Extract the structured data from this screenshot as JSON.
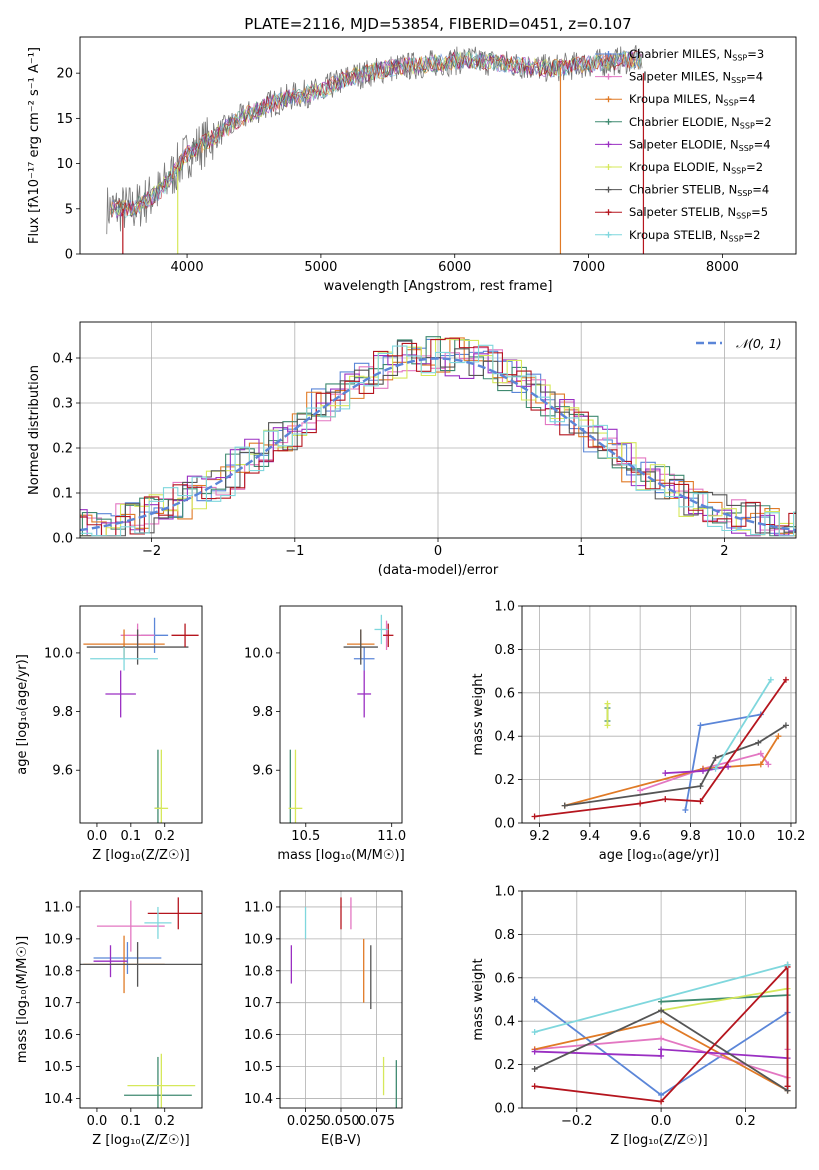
{
  "figure_title": "PLATE=2116, MJD=53854, FIBERID=0451, z=0.107",
  "colors": {
    "Chabrier MILES": "#5b86d8",
    "Salpeter MILES": "#e377c2",
    "Kroupa MILES": "#e07a26",
    "Chabrier ELODIE": "#3f8a70",
    "Salpeter ELODIE": "#9a2fc2",
    "Kroupa ELODIE": "#d6e85a",
    "Chabrier STELIB": "#555555",
    "Salpeter STELIB": "#b5151e",
    "Kroupa STELIB": "#7fd7dd",
    "spectrum": "#777777"
  },
  "chart_data": [
    {
      "id": "spectrum",
      "type": "line",
      "xlabel": "wavelength [Angstrom, rest frame]",
      "ylabel": "Flux [fλ10⁻¹⁷ erg cm⁻² s⁻¹ A⁻¹]",
      "xlim": [
        3200,
        8550
      ],
      "ylim": [
        0,
        24
      ],
      "xticks": [
        4000,
        5000,
        6000,
        7000,
        8000
      ],
      "yticks": [
        0,
        5,
        10,
        15,
        20
      ],
      "grid": false,
      "legend_position": "top-right",
      "legend": [
        "Chabrier MILES, N_SSP=3",
        "Salpeter MILES, N_SSP=4",
        "Kroupa MILES, N_SSP=4",
        "Chabrier ELODIE, N_SSP=2",
        "Salpeter ELODIE, N_SSP=4",
        "Kroupa ELODIE, N_SSP=2",
        "Chabrier STELIB, N_SSP=4",
        "Salpeter STELIB, N_SSP=5",
        "Kroupa STELIB, N_SSP=2"
      ],
      "continuum": {
        "x": [
          3400,
          3600,
          3800,
          4000,
          4200,
          4400,
          4600,
          4800,
          5000,
          5200,
          5500,
          5800,
          6100,
          6400,
          6700,
          7000,
          7300,
          7400
        ],
        "y": [
          5,
          5,
          7,
          11,
          13,
          15,
          16.5,
          17.5,
          18,
          19.5,
          20.5,
          21,
          21.5,
          21,
          20.5,
          21,
          21.5,
          21.5
        ]
      },
      "vertical_drops_x": [
        3520,
        3930,
        6790,
        7410
      ]
    },
    {
      "id": "residuals",
      "type": "step",
      "xlabel": "(data-model)/error",
      "ylabel": "Normed distribution",
      "xlim": [
        -2.5,
        2.5
      ],
      "ylim": [
        0,
        0.48
      ],
      "xticks": [
        -2,
        -1,
        0,
        1,
        2
      ],
      "yticks": [
        0.0,
        0.1,
        0.2,
        0.3,
        0.4
      ],
      "grid": true,
      "legend_position": "top-right",
      "legend": [
        "𝒩(0, 1)"
      ]
    },
    {
      "id": "age-vs-Z",
      "type": "errorbar",
      "xlabel": "Z [log₁₀(Z/Z☉)]",
      "ylabel": "age  [log₁₀(age/yr)]",
      "xlim": [
        -0.05,
        0.31
      ],
      "ylim": [
        9.42,
        10.16
      ],
      "xticks": [
        0.0,
        0.1,
        0.2
      ],
      "yticks": [
        9.6,
        9.8,
        10.0
      ],
      "grid": false,
      "points": [
        {
          "m": "Chabrier MILES",
          "x": 0.17,
          "y": 10.06,
          "xe": 0.04,
          "ye": 0.06
        },
        {
          "m": "Salpeter MILES",
          "x": 0.12,
          "y": 10.06,
          "xe": 0.05,
          "ye": 0.04
        },
        {
          "m": "Kroupa MILES",
          "x": 0.08,
          "y": 10.03,
          "xe": 0.12,
          "ye": 0.05
        },
        {
          "m": "Chabrier ELODIE",
          "x": 0.18,
          "y": 9.47,
          "xe": 0.01,
          "ye": 0.2
        },
        {
          "m": "Salpeter ELODIE",
          "x": 0.07,
          "y": 9.86,
          "xe": 0.045,
          "ye": 0.08
        },
        {
          "m": "Kroupa ELODIE",
          "x": 0.19,
          "y": 9.47,
          "xe": 0.02,
          "ye": 0.2
        },
        {
          "m": "Chabrier STELIB",
          "x": 0.12,
          "y": 10.02,
          "xe": 0.15,
          "ye": 0.06
        },
        {
          "m": "Salpeter STELIB",
          "x": 0.26,
          "y": 10.06,
          "xe": 0.04,
          "ye": 0.04
        },
        {
          "m": "Kroupa STELIB",
          "x": 0.08,
          "y": 9.98,
          "xe": 0.1,
          "ye": 0.04
        }
      ]
    },
    {
      "id": "age-vs-mass",
      "type": "errorbar",
      "xlabel": "mass [log₁₀(M/M☉)]",
      "ylabel": "",
      "xlim": [
        10.35,
        11.06
      ],
      "ylim": [
        9.42,
        10.16
      ],
      "xticks": [
        10.5,
        11.0
      ],
      "yticks": [
        9.6,
        9.8,
        10.0
      ],
      "grid": false,
      "points": [
        {
          "m": "Chabrier MILES",
          "x": 10.84,
          "y": 9.98,
          "xe": 0.06,
          "ye": 0.04
        },
        {
          "m": "Salpeter MILES",
          "x": 10.97,
          "y": 10.06,
          "xe": 0.02,
          "ye": 0.05
        },
        {
          "m": "Kroupa MILES",
          "x": 10.82,
          "y": 10.03,
          "xe": 0.08,
          "ye": 0.05
        },
        {
          "m": "Chabrier ELODIE",
          "x": 10.41,
          "y": 9.47,
          "xe": 0.005,
          "ye": 0.2
        },
        {
          "m": "Salpeter ELODIE",
          "x": 10.84,
          "y": 9.86,
          "xe": 0.04,
          "ye": 0.08
        },
        {
          "m": "Kroupa ELODIE",
          "x": 10.44,
          "y": 9.47,
          "xe": 0.04,
          "ye": 0.2
        },
        {
          "m": "Chabrier STELIB",
          "x": 10.82,
          "y": 10.02,
          "xe": 0.1,
          "ye": 0.06
        },
        {
          "m": "Salpeter STELIB",
          "x": 10.98,
          "y": 10.06,
          "xe": 0.03,
          "ye": 0.04
        },
        {
          "m": "Kroupa STELIB",
          "x": 10.94,
          "y": 10.08,
          "xe": 0.04,
          "ye": 0.05
        }
      ]
    },
    {
      "id": "weight-vs-age",
      "type": "line",
      "xlabel": "age  [log₁₀(age/yr)]",
      "ylabel": "mass weight",
      "xlim": [
        9.13,
        10.22
      ],
      "ylim": [
        0,
        1.0
      ],
      "xticks": [
        9.2,
        9.4,
        9.6,
        9.8,
        10.0,
        10.2
      ],
      "yticks": [
        0.0,
        0.2,
        0.4,
        0.6,
        0.8,
        1.0
      ],
      "grid": true,
      "series": [
        {
          "m": "Chabrier MILES",
          "x": [
            9.78,
            9.84,
            10.08
          ],
          "y": [
            0.06,
            0.45,
            0.5
          ]
        },
        {
          "m": "Salpeter MILES",
          "x": [
            9.6,
            9.85,
            10.08,
            10.11
          ],
          "y": [
            0.15,
            0.25,
            0.32,
            0.27
          ]
        },
        {
          "m": "Kroupa MILES",
          "x": [
            9.3,
            9.85,
            10.08,
            10.15
          ],
          "y": [
            0.08,
            0.25,
            0.27,
            0.4
          ]
        },
        {
          "m": "Chabrier ELODIE",
          "x": [
            9.47,
            9.47
          ],
          "y": [
            0.47,
            0.53
          ]
        },
        {
          "m": "Salpeter ELODIE",
          "x": [
            9.7,
            9.85,
            9.95
          ],
          "y": [
            0.23,
            0.24,
            0.26
          ]
        },
        {
          "m": "Kroupa ELODIE",
          "x": [
            9.47,
            9.47
          ],
          "y": [
            0.45,
            0.55
          ]
        },
        {
          "m": "Chabrier STELIB",
          "x": [
            9.3,
            9.84,
            9.9,
            10.07,
            10.18
          ],
          "y": [
            0.08,
            0.17,
            0.3,
            0.37,
            0.45
          ]
        },
        {
          "m": "Salpeter STELIB",
          "x": [
            9.18,
            9.6,
            9.7,
            9.84,
            10.18
          ],
          "y": [
            0.03,
            0.09,
            0.11,
            0.1,
            0.66
          ]
        },
        {
          "m": "Kroupa STELIB",
          "x": [
            9.9,
            10.12
          ],
          "y": [
            0.25,
            0.66
          ]
        }
      ]
    },
    {
      "id": "mass-vs-Z",
      "type": "errorbar",
      "xlabel": "Z [log₁₀(Z/Z☉)]",
      "ylabel": "mass [log₁₀(M/M☉)]",
      "xlim": [
        -0.05,
        0.31
      ],
      "ylim": [
        10.37,
        11.05
      ],
      "xticks": [
        0.0,
        0.1,
        0.2
      ],
      "yticks": [
        10.4,
        10.5,
        10.6,
        10.7,
        10.8,
        10.9,
        11.0
      ],
      "grid": false,
      "points": [
        {
          "m": "Chabrier MILES",
          "x": 0.09,
          "y": 10.84,
          "xe": 0.1,
          "ye": 0.05
        },
        {
          "m": "Salpeter MILES",
          "x": 0.1,
          "y": 10.94,
          "xe": 0.1,
          "ye": 0.08
        },
        {
          "m": "Kroupa MILES",
          "x": 0.08,
          "y": 10.82,
          "xe": 0.12,
          "ye": 0.09
        },
        {
          "m": "Chabrier ELODIE",
          "x": 0.18,
          "y": 10.41,
          "xe": 0.1,
          "ye": 0.12
        },
        {
          "m": "Salpeter ELODIE",
          "x": 0.04,
          "y": 10.83,
          "xe": 0.05,
          "ye": 0.05
        },
        {
          "m": "Kroupa ELODIE",
          "x": 0.19,
          "y": 10.44,
          "xe": 0.1,
          "ye": 0.1
        },
        {
          "m": "Chabrier STELIB",
          "x": 0.12,
          "y": 10.82,
          "xe": 0.2,
          "ye": 0.07
        },
        {
          "m": "Salpeter STELIB",
          "x": 0.24,
          "y": 10.98,
          "xe": 0.09,
          "ye": 0.05
        },
        {
          "m": "Kroupa STELIB",
          "x": 0.18,
          "y": 10.95,
          "xe": 0.04,
          "ye": 0.05
        }
      ]
    },
    {
      "id": "mass-vs-ebv",
      "type": "errorbar",
      "xlabel": "E(B-V)",
      "ylabel": "",
      "xlim": [
        0.007,
        0.093
      ],
      "ylim": [
        10.37,
        11.05
      ],
      "xticks": [
        0.025,
        0.05,
        0.075
      ],
      "xticklabels": [
        "0.025",
        "0.050",
        "0.075"
      ],
      "yticks": [
        10.4,
        10.5,
        10.6,
        10.7,
        10.8,
        10.9,
        11.0
      ],
      "grid": true,
      "points": [
        {
          "m": "Salpeter ELODIE",
          "x": 0.015,
          "y": 10.82,
          "xe": 0,
          "ye": 0.06
        },
        {
          "m": "Kroupa STELIB",
          "x": 0.025,
          "y": 10.95,
          "xe": 0,
          "ye": 0.05
        },
        {
          "m": "Salpeter STELIB",
          "x": 0.05,
          "y": 10.98,
          "xe": 0,
          "ye": 0.05
        },
        {
          "m": "Salpeter MILES",
          "x": 0.057,
          "y": 10.98,
          "xe": 0,
          "ye": 0.05
        },
        {
          "m": "Kroupa MILES",
          "x": 0.066,
          "y": 10.8,
          "xe": 0,
          "ye": 0.1
        },
        {
          "m": "Chabrier STELIB",
          "x": 0.071,
          "y": 10.78,
          "xe": 0,
          "ye": 0.1
        },
        {
          "m": "Kroupa ELODIE",
          "x": 0.08,
          "y": 10.47,
          "xe": 0,
          "ye": 0.06
        },
        {
          "m": "Chabrier ELODIE",
          "x": 0.089,
          "y": 10.42,
          "xe": 0,
          "ye": 0.1
        }
      ]
    },
    {
      "id": "weight-vs-Z",
      "type": "line",
      "xlabel": "Z [log₁₀(Z/Z☉)]",
      "ylabel": "mass weight",
      "xlim": [
        -0.33,
        0.32
      ],
      "ylim": [
        0,
        1.0
      ],
      "xticks": [
        -0.2,
        0.0,
        0.2
      ],
      "yticks": [
        0.0,
        0.2,
        0.4,
        0.6,
        0.8,
        1.0
      ],
      "grid": true,
      "series": [
        {
          "m": "Chabrier MILES",
          "x": [
            -0.3,
            0.0,
            0.3
          ],
          "y": [
            0.5,
            0.06,
            0.44
          ]
        },
        {
          "m": "Salpeter MILES",
          "x": [
            -0.3,
            0.0,
            0.3,
            0.3
          ],
          "y": [
            0.27,
            0.32,
            0.14,
            0.27
          ]
        },
        {
          "m": "Kroupa MILES",
          "x": [
            -0.3,
            0.0,
            0.3
          ],
          "y": [
            0.27,
            0.4,
            0.08
          ]
        },
        {
          "m": "Chabrier ELODIE",
          "x": [
            0.0,
            0.3
          ],
          "y": [
            0.49,
            0.52
          ]
        },
        {
          "m": "Salpeter ELODIE",
          "x": [
            -0.3,
            0.0,
            0.0,
            0.3
          ],
          "y": [
            0.26,
            0.24,
            0.27,
            0.23
          ]
        },
        {
          "m": "Kroupa ELODIE",
          "x": [
            0.0,
            0.3
          ],
          "y": [
            0.45,
            0.55
          ]
        },
        {
          "m": "Chabrier STELIB",
          "x": [
            -0.3,
            0.0,
            0.3,
            0.3
          ],
          "y": [
            0.18,
            0.45,
            0.08,
            0.66
          ]
        },
        {
          "m": "Salpeter STELIB",
          "x": [
            -0.3,
            0.0,
            0.3,
            0.3
          ],
          "y": [
            0.1,
            0.03,
            0.65,
            0.1
          ]
        },
        {
          "m": "Kroupa STELIB",
          "x": [
            -0.3,
            0.3
          ],
          "y": [
            0.35,
            0.66
          ]
        }
      ]
    }
  ]
}
